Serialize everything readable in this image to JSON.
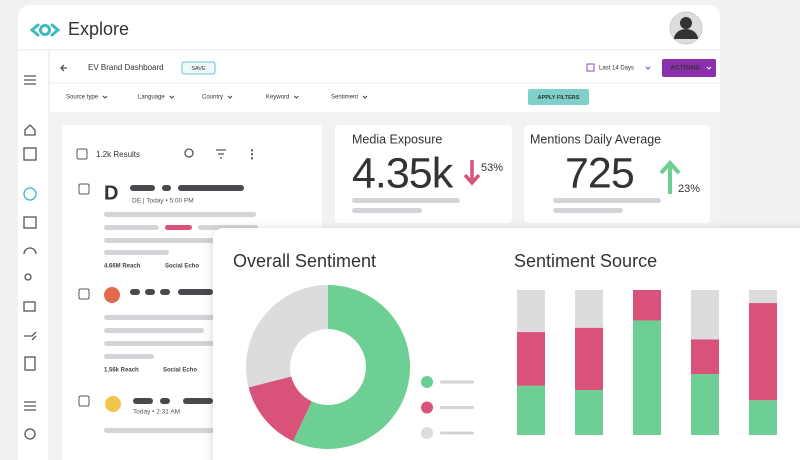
{
  "header": {
    "app_title": "Explore"
  },
  "toolbar": {
    "dashboard_name": "EV Brand Dashboard",
    "save": "SAVE",
    "date_range": "Last 14 Days",
    "actions": "ACTIONS"
  },
  "filters": {
    "items": [
      "Source type",
      "Language",
      "Country",
      "Keyword",
      "Sentiment"
    ],
    "apply": "APPLY FILTERS"
  },
  "results": {
    "count": "1.2k Results",
    "items": [
      {
        "meta": "DE | Today • 5:00 PM",
        "reach": "4.66M Reach",
        "source": "Social Echo"
      },
      {
        "reach": "1.56k Reach",
        "source": "Social Echo"
      },
      {
        "meta": "Today • 2:31 AM"
      }
    ]
  },
  "metrics": [
    {
      "title": "Media Exposure",
      "value": "4.35k",
      "change": "53%"
    },
    {
      "title": "Mentions Daily Average",
      "value": "725",
      "change": "23%"
    }
  ],
  "overall_sentiment": {
    "type": "pie",
    "title": "Overall Sentiment",
    "values": [
      57,
      14,
      29
    ],
    "colors": [
      "#6dcf93",
      "#d9527a",
      "#dcdcdf"
    ]
  },
  "sentiment_source": {
    "type": "bar",
    "stacked": true,
    "title": "Sentiment Source",
    "series": [
      {
        "color": "#6dcf93",
        "values": [
          34,
          31,
          79,
          42,
          24
        ]
      },
      {
        "color": "#d9527a",
        "values": [
          37,
          43,
          21,
          24,
          67
        ]
      },
      {
        "color": "#dcdcdf",
        "values": [
          29,
          26,
          0,
          34,
          9
        ]
      }
    ]
  }
}
